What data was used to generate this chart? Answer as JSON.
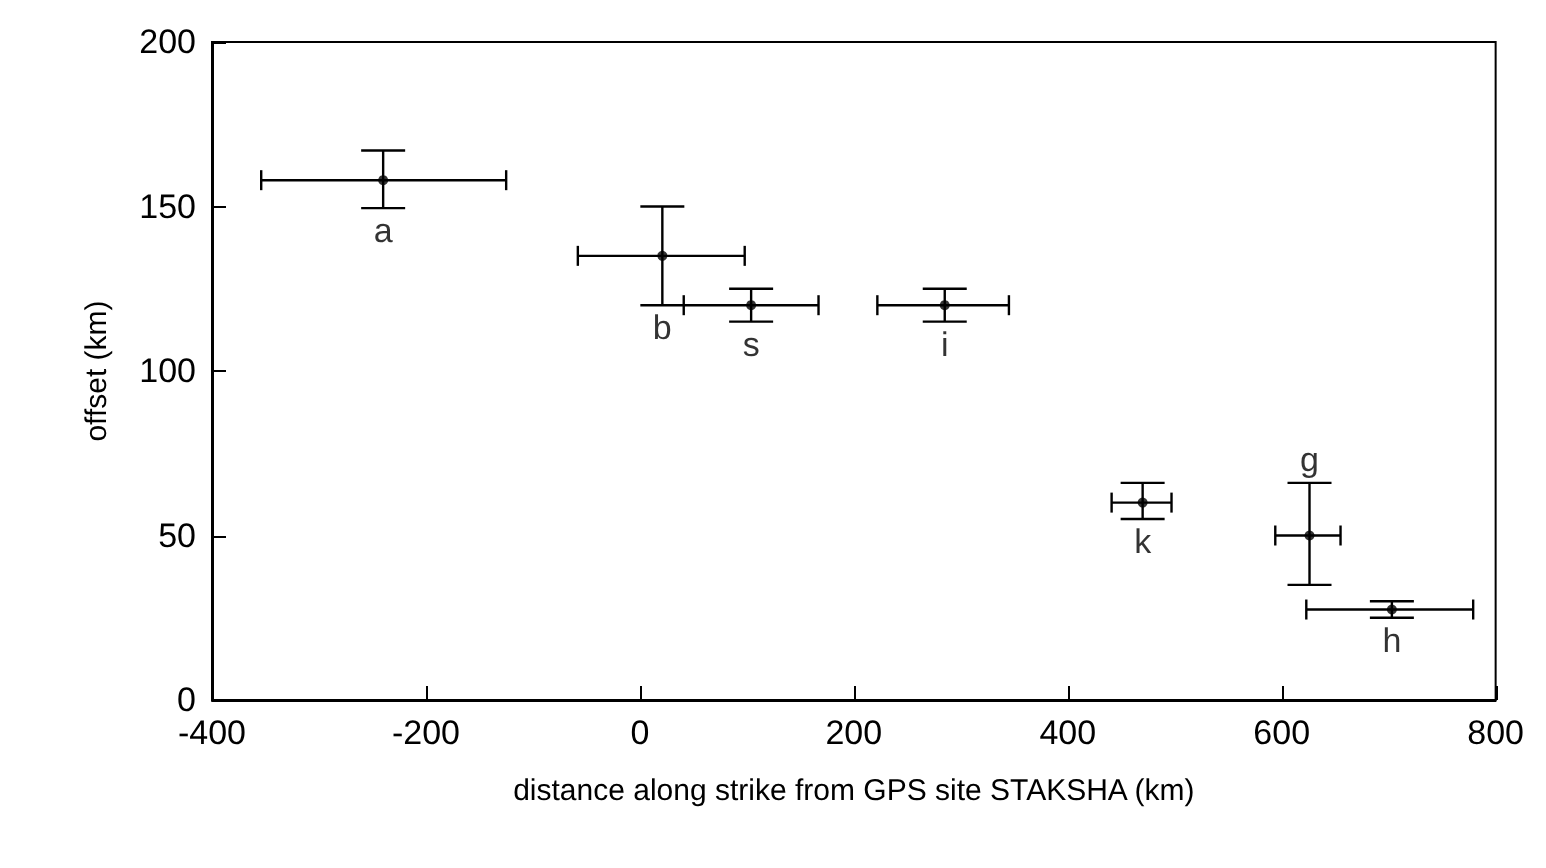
{
  "chart_data": {
    "type": "scatter",
    "xlabel": "distance along strike from GPS site STAKSHA (km)",
    "ylabel": "offset (km)",
    "x": [
      -240,
      21,
      104,
      285,
      470,
      626,
      703
    ],
    "values": [
      158,
      135,
      120,
      120,
      60,
      50,
      27.5
    ],
    "errors": [
      [
        149.5,
        167
      ],
      [
        120,
        150
      ],
      [
        115,
        125
      ],
      [
        115,
        125
      ],
      [
        55,
        66
      ],
      [
        35,
        66
      ],
      [
        25,
        30
      ]
    ],
    "xerrors": [
      [
        -354,
        -125
      ],
      [
        -58,
        98
      ],
      [
        41,
        167
      ],
      [
        222,
        345
      ],
      [
        441,
        497
      ],
      [
        594,
        655
      ],
      [
        623,
        779
      ]
    ],
    "color": "#000000",
    "marker": "circle",
    "xlim": [
      -400,
      800
    ],
    "xticks": [
      -400,
      -200,
      0,
      200,
      400,
      600,
      800
    ],
    "ylim": [
      0,
      200
    ],
    "yticks": [
      0,
      50,
      100,
      150,
      200
    ],
    "grid": false,
    "annotations": [
      {
        "text": "a",
        "x": -240,
        "y": 158
      },
      {
        "text": "b",
        "x": 21,
        "y": 135
      },
      {
        "text": "s",
        "x": 104,
        "y": 120
      },
      {
        "text": "i",
        "x": 285,
        "y": 120
      },
      {
        "text": "k",
        "x": 470,
        "y": 60
      },
      {
        "text": "g",
        "x": 626,
        "y": 50
      },
      {
        "text": "h",
        "x": 703,
        "y": 27.5
      }
    ]
  }
}
